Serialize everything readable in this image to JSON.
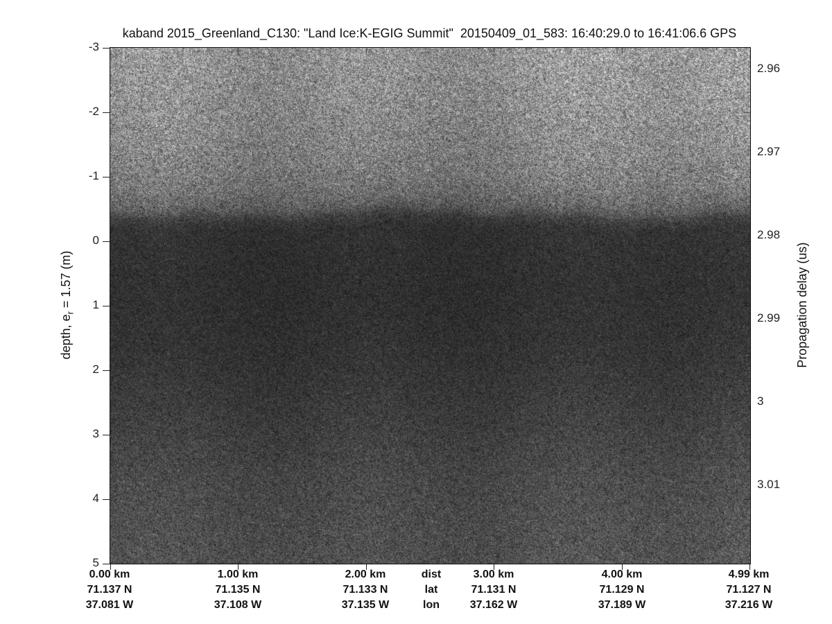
{
  "figure_title": "kaband 2015_Greenland_C130: \"Land Ice:K-EGIG Summit\"  20150409_01_583: 16:40:29.0 to 16:41:06.6 GPS",
  "left_axis": {
    "label_pre": "depth, e",
    "label_sub": "r",
    "label_post": " = 1.57 (m)",
    "ticks": [
      "-3",
      "-2",
      "-1",
      "0",
      "1",
      "2",
      "3",
      "4",
      "5"
    ]
  },
  "right_axis": {
    "label": "Propagation delay (us)",
    "ticks": [
      "2.96",
      "2.97",
      "2.98",
      "2.99",
      "3",
      "3.01"
    ]
  },
  "bottom_axis": {
    "cols": [
      {
        "dist": "0.00 km",
        "lat": "71.137 N",
        "lon": "37.081 W"
      },
      {
        "dist": "1.00 km",
        "lat": "71.135 N",
        "lon": "37.108 W"
      },
      {
        "dist": "2.00 km",
        "lat": "71.133 N",
        "lon": "37.135 W"
      },
      {
        "dist": "dist",
        "lat": "lat",
        "lon": "lon"
      },
      {
        "dist": "3.00 km",
        "lat": "71.131 N",
        "lon": "37.162 W"
      },
      {
        "dist": "4.00 km",
        "lat": "71.129 N",
        "lon": "37.189 W"
      },
      {
        "dist": "4.99 km",
        "lat": "71.127 N",
        "lon": "37.216 W"
      }
    ]
  },
  "chart_data": {
    "type": "heatmap",
    "title": "kaband 2015_Greenland_C130: \"Land Ice:K-EGIG Summit\"  20150409_01_583: 16:40:29.0 to 16:41:06.6 GPS",
    "xlabel": "dist (km), lat (deg N), lon (deg W)",
    "x_ticks_km": [
      0.0,
      1.0,
      2.0,
      3.0,
      4.0,
      4.99
    ],
    "x_lat_deg_n": [
      71.137,
      71.135,
      71.133,
      71.131,
      71.129,
      71.127
    ],
    "x_lon_deg_w": [
      37.081,
      37.108,
      37.135,
      37.162,
      37.189,
      37.216
    ],
    "ylabel_left": "depth, e_r = 1.57 (m)",
    "y_ticks_depth_m": [
      -3,
      -2,
      -1,
      0,
      1,
      2,
      3,
      4,
      5
    ],
    "ylim_depth_m": [
      -3,
      5
    ],
    "ylabel_right": "Propagation delay (us)",
    "y_ticks_delay_us": [
      2.96,
      2.97,
      2.98,
      2.99,
      3.0,
      3.01
    ],
    "colormap": "inverted grayscale (dark = strong return, bright speckle = weak return)",
    "surface_return_depth_m": -0.4,
    "surface_return_delay_us": 2.978,
    "description": "Ka-band snow-radar echogram: bright speckled air region above a wavy dark surface return near depth -0.4 m (~2.98 us), darkest firn returns from 0-2 m depth, gradually brightening speckle below 2.5 m depth",
    "intensity_profile": [
      [
        -250,
        152
      ],
      [
        -150,
        142
      ],
      [
        -80,
        130
      ],
      [
        -40,
        118
      ],
      [
        -15,
        100
      ],
      [
        -5,
        85
      ],
      [
        5,
        62
      ],
      [
        20,
        50
      ],
      [
        120,
        48
      ],
      [
        200,
        52
      ],
      [
        290,
        62
      ],
      [
        380,
        74
      ],
      [
        460,
        80
      ],
      [
        520,
        82
      ]
    ],
    "grid": false,
    "legend": false
  }
}
